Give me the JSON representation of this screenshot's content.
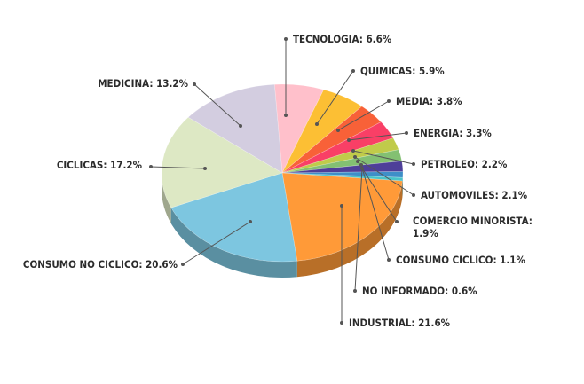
{
  "chart_data": {
    "type": "pie",
    "title": "",
    "unit": "%",
    "slices": [
      {
        "label": "TECNOLOGIA",
        "value": 6.6,
        "text": "TECNOLOGIA: 6.6%",
        "color": "#ffc0cb"
      },
      {
        "label": "QUIMICAS",
        "value": 5.9,
        "text": "QUIMICAS: 5.9%",
        "color": "#fcbf34"
      },
      {
        "label": "MEDIA",
        "value": 3.8,
        "text": "MEDIA: 3.8%",
        "color": "#f86138"
      },
      {
        "label": "ENERGIA",
        "value": 3.3,
        "text": "ENERGIA: 3.3%",
        "color": "#f93f66"
      },
      {
        "label": "PETROLEO",
        "value": 2.2,
        "text": "PETROLEO: 2.2%",
        "color": "#c0cb4a"
      },
      {
        "label": "AUTOMOVILES",
        "value": 2.1,
        "text": "AUTOMOVILES: 2.1%",
        "color": "#83c072"
      },
      {
        "label": "COMERCIO MINORISTA",
        "value": 1.9,
        "text_lines": [
          "COMERCIO MINORISTA:",
          "1.9%"
        ],
        "color": "#4e3f99"
      },
      {
        "label": "CONSUMO CICLICO",
        "value": 1.1,
        "text": "CONSUMO CICLICO: 1.1%",
        "color": "#3e8fc8"
      },
      {
        "label": "NO INFORMADO",
        "value": 0.6,
        "text": "NO INFORMADO: 0.6%",
        "color": "#49c4c9"
      },
      {
        "label": "INDUSTRIAL",
        "value": 21.6,
        "text": "INDUSTRIAL: 21.6%",
        "color": "#ff9a38"
      },
      {
        "label": "CONSUMO NO CICLICO",
        "value": 20.6,
        "text": "CONSUMO NO CICLICO: 20.6%",
        "color": "#7dc6e0"
      },
      {
        "label": "CICLICAS",
        "value": 17.2,
        "text": "CICLICAS: 17.2%",
        "color": "#dde8c4"
      },
      {
        "label": "MEDICINA",
        "value": 13.2,
        "text": "MEDICINA: 13.2%",
        "color": "#d3cde0"
      }
    ]
  }
}
